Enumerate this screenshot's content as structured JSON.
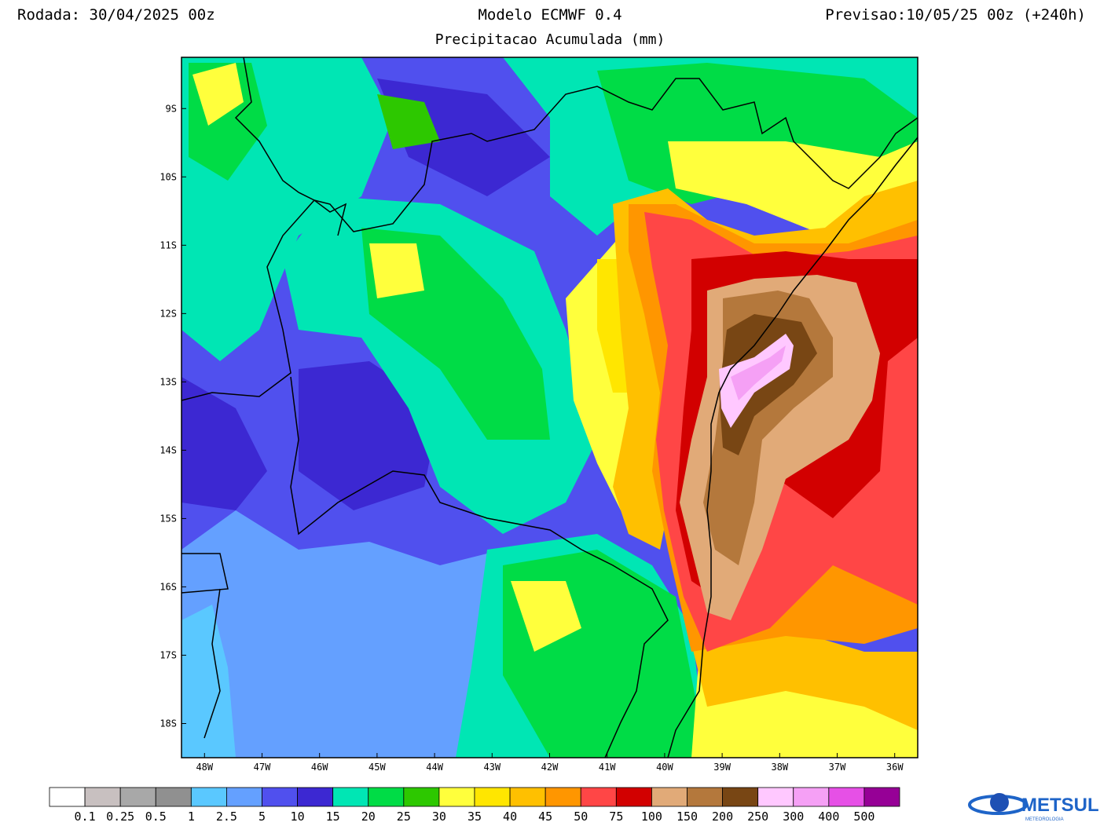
{
  "header": {
    "run": "Rodada: 30/04/2025 00z",
    "model": "Modelo ECMWF 0.4",
    "subtitle": "Precipitacao Acumulada (mm)",
    "forecast": "Previsao:10/05/25 00z (+240h)"
  },
  "chart_data": {
    "type": "map",
    "xlim": [
      -48.4,
      -35.6
    ],
    "ylim": [
      -18.5,
      -8.25
    ],
    "xticks": [
      {
        "value": -48,
        "label": "48W"
      },
      {
        "value": -47,
        "label": "47W"
      },
      {
        "value": -46,
        "label": "46W"
      },
      {
        "value": -45,
        "label": "45W"
      },
      {
        "value": -44,
        "label": "44W"
      },
      {
        "value": -43,
        "label": "43W"
      },
      {
        "value": -42,
        "label": "42W"
      },
      {
        "value": -41,
        "label": "41W"
      },
      {
        "value": -40,
        "label": "40W"
      },
      {
        "value": -39,
        "label": "39W"
      },
      {
        "value": -38,
        "label": "38W"
      },
      {
        "value": -37,
        "label": "37W"
      },
      {
        "value": -36,
        "label": "36W"
      }
    ],
    "yticks": [
      {
        "value": -9,
        "label": "9S"
      },
      {
        "value": -10,
        "label": "10S"
      },
      {
        "value": -11,
        "label": "11S"
      },
      {
        "value": -12,
        "label": "12S"
      },
      {
        "value": -13,
        "label": "13S"
      },
      {
        "value": -14,
        "label": "14S"
      },
      {
        "value": -15,
        "label": "15S"
      },
      {
        "value": -16,
        "label": "16S"
      },
      {
        "value": -17,
        "label": "17S"
      },
      {
        "value": -18,
        "label": "18S"
      }
    ],
    "colorbar": {
      "levels": [
        0.1,
        0.25,
        0.5,
        1,
        2.5,
        5,
        10,
        15,
        20,
        25,
        30,
        35,
        40,
        45,
        50,
        75,
        100,
        150,
        200,
        250,
        300,
        400,
        500
      ],
      "colors": [
        "#ffffff",
        "#c8c0c0",
        "#a8a8a8",
        "#909090",
        "#5ac8ff",
        "#64a0ff",
        "#5050ee",
        "#3c28d2",
        "#00e6b4",
        "#00dc46",
        "#2dc800",
        "#ffff3c",
        "#ffe600",
        "#ffc000",
        "#ff9600",
        "#ff4646",
        "#d20000",
        "#e1aa78",
        "#b4783c",
        "#784614",
        "#ffc8ff",
        "#f5a0f5",
        "#e650e6",
        "#960096"
      ]
    }
  },
  "logo": {
    "name": "METSUL",
    "tagline": "METEOROLOGIA"
  }
}
